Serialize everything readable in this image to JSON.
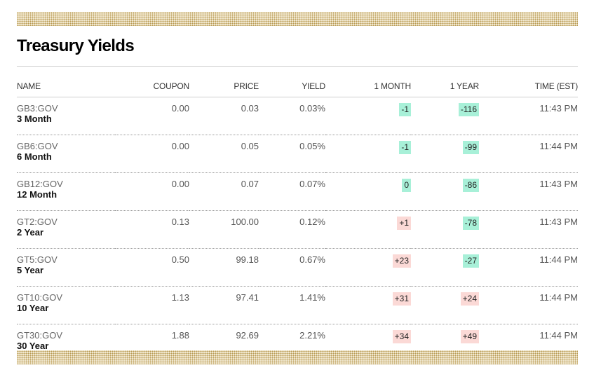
{
  "title": "Treasury Yields",
  "headers": {
    "name": "NAME",
    "coupon": "COUPON",
    "price": "PRICE",
    "yield": "YIELD",
    "one_month": "1 MONTH",
    "one_year": "1 YEAR",
    "time": "TIME (EST)"
  },
  "colors": {
    "positive_bg": "#fbd9d6",
    "negative_bg": "#a8f0d8",
    "band": "#f4ecd6"
  },
  "rows": [
    {
      "ticker": "GB3:GOV",
      "name": "3 Month",
      "coupon": "0.00",
      "price": "0.03",
      "yield": "0.03%",
      "one_month": "-1",
      "one_year": "-116",
      "time": "11:43 PM"
    },
    {
      "ticker": "GB6:GOV",
      "name": "6 Month",
      "coupon": "0.00",
      "price": "0.05",
      "yield": "0.05%",
      "one_month": "-1",
      "one_year": "-99",
      "time": "11:44 PM"
    },
    {
      "ticker": "GB12:GOV",
      "name": "12 Month",
      "coupon": "0.00",
      "price": "0.07",
      "yield": "0.07%",
      "one_month": "0",
      "one_year": "-86",
      "time": "11:43 PM"
    },
    {
      "ticker": "GT2:GOV",
      "name": "2 Year",
      "coupon": "0.13",
      "price": "100.00",
      "yield": "0.12%",
      "one_month": "+1",
      "one_year": "-78",
      "time": "11:43 PM"
    },
    {
      "ticker": "GT5:GOV",
      "name": "5 Year",
      "coupon": "0.50",
      "price": "99.18",
      "yield": "0.67%",
      "one_month": "+23",
      "one_year": "-27",
      "time": "11:44 PM"
    },
    {
      "ticker": "GT10:GOV",
      "name": "10 Year",
      "coupon": "1.13",
      "price": "97.41",
      "yield": "1.41%",
      "one_month": "+31",
      "one_year": "+24",
      "time": "11:44 PM"
    },
    {
      "ticker": "GT30:GOV",
      "name": "30 Year",
      "coupon": "1.88",
      "price": "92.69",
      "yield": "2.21%",
      "one_month": "+34",
      "one_year": "+49",
      "time": "11:44 PM"
    }
  ]
}
